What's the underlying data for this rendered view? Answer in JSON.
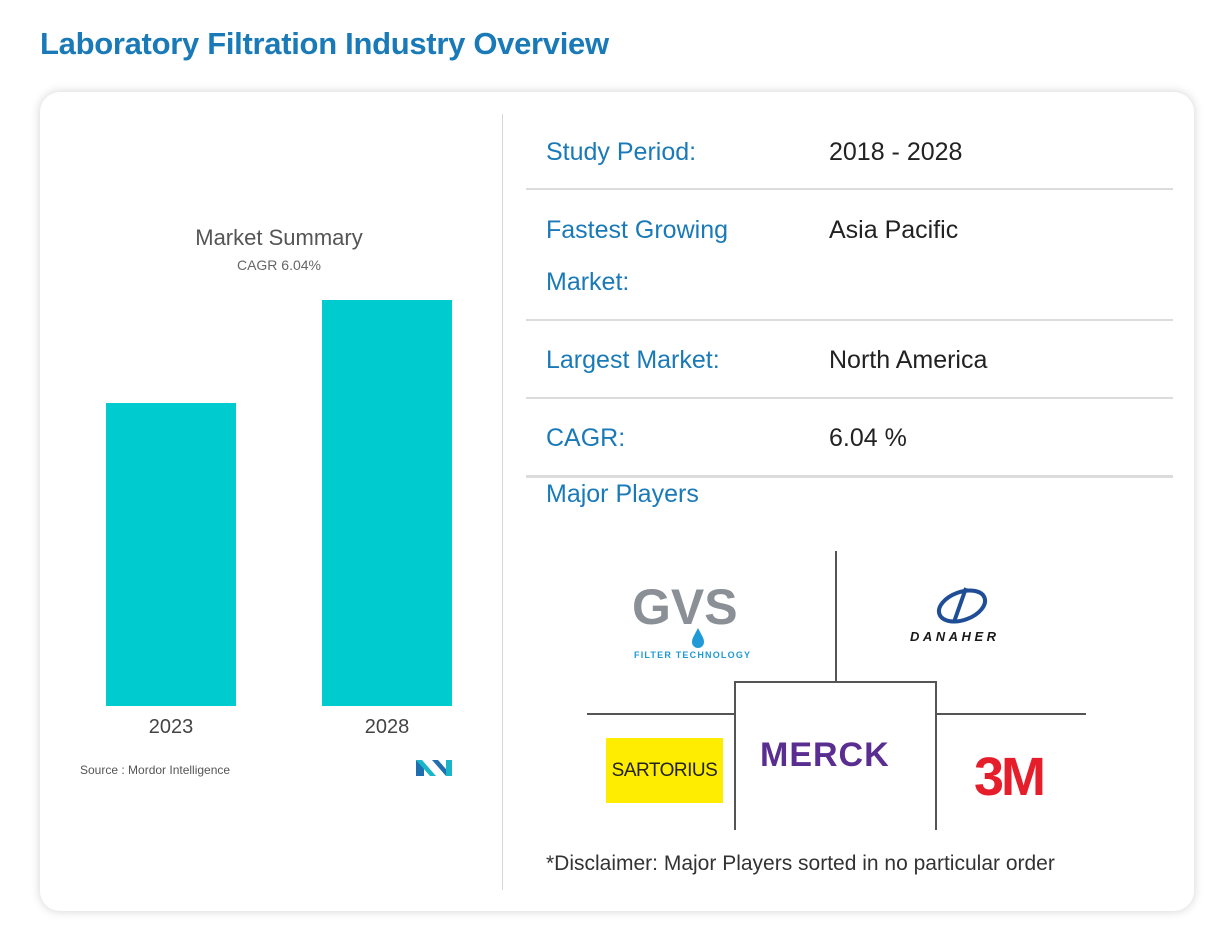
{
  "page_title": "Laboratory Filtration Industry Overview",
  "chart_data": {
    "type": "bar",
    "title": "Market Summary",
    "subtitle": "CAGR 6.04%",
    "categories": [
      "2023",
      "2028"
    ],
    "values": [
      1.0,
      1.34
    ],
    "bar_color": "#00ccd0",
    "grid": false,
    "source": "Source : Mordor Intelligence"
  },
  "info": {
    "study_period": {
      "label": "Study Period:",
      "value": "2018 - 2028"
    },
    "fastest_growing": {
      "label_line1": "Fastest Growing",
      "label_line2": "Market:",
      "value": "Asia Pacific"
    },
    "largest_market": {
      "label": "Largest Market:",
      "value": "North America"
    },
    "cagr": {
      "label": "CAGR:",
      "value": "6.04 %"
    }
  },
  "players": {
    "title": "Major Players",
    "logos": [
      {
        "name": "GVS",
        "tagline": "FILTER TECHNOLOGY"
      },
      {
        "name": "DANAHER"
      },
      {
        "name": "SARTORIUS"
      },
      {
        "name": "MERCK"
      },
      {
        "name": "3M"
      }
    ],
    "disclaimer": "*Disclaimer: Major Players sorted in no particular order"
  },
  "colors": {
    "accent": "#1a7ab8",
    "bar": "#00ccd0",
    "merck_purple": "#5a2d91",
    "sartorius_yellow": "#ffed00",
    "red_3m": "#e61e2b"
  }
}
